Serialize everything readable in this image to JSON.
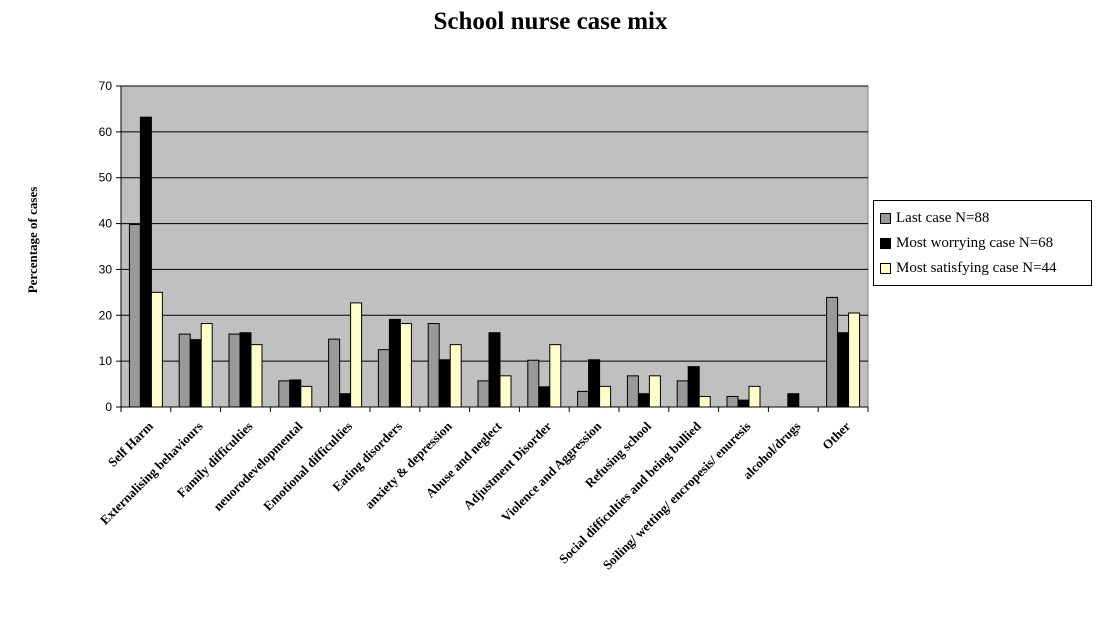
{
  "chart_data": {
    "type": "bar",
    "title": "School nurse case mix",
    "xlabel": "",
    "ylabel": "Percentage of cases",
    "ylim": [
      0,
      70
    ],
    "yticks": [
      0,
      10,
      20,
      30,
      40,
      50,
      60,
      70
    ],
    "grid": true,
    "legend_position": "right",
    "plot_background": "#c0c0c0",
    "categories": [
      "Self Harm",
      "Externalising behaviours",
      "Family difficulties",
      "neuorodevelopmental",
      "Emotional difficulties",
      "Eating disorders",
      "anxiety & depression",
      "Abuse and neglect",
      "Adjustment Disorder",
      "Violence and Aggression",
      "Refusing school",
      "Social difficulties and being bullied",
      "Soiling/ wetting/ encropesis/ enuresis",
      "alcohol/drugs",
      "Other"
    ],
    "series": [
      {
        "name": "Last case N=88",
        "color": "#999999",
        "values": [
          39.8,
          15.9,
          15.9,
          5.7,
          14.8,
          12.5,
          18.2,
          5.7,
          10.2,
          3.4,
          6.8,
          5.7,
          2.3,
          0,
          23.9
        ]
      },
      {
        "name": "Most worrying case N=68",
        "color": "#000000",
        "values": [
          63.2,
          14.7,
          16.2,
          5.9,
          2.9,
          19.1,
          10.3,
          16.2,
          4.4,
          10.3,
          2.9,
          8.8,
          1.5,
          2.9,
          16.2
        ]
      },
      {
        "name": "Most satisfying case N=44",
        "color": "#ffffcc",
        "values": [
          25.0,
          18.2,
          13.6,
          4.5,
          22.7,
          18.2,
          13.6,
          6.8,
          13.6,
          4.5,
          6.8,
          2.3,
          4.5,
          0,
          20.5
        ]
      }
    ]
  }
}
